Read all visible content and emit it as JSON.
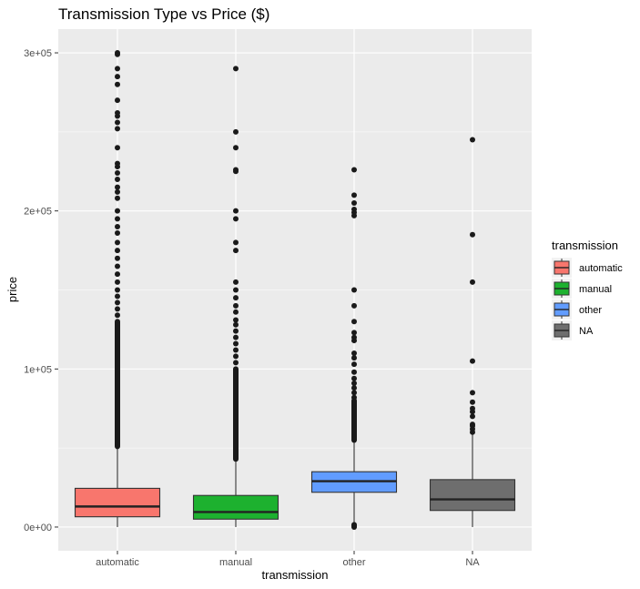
{
  "chart_data": {
    "type": "box",
    "title": "Transmission Type vs Price ($)",
    "xlabel": "transmission",
    "ylabel": "price",
    "ylim": [
      -15000,
      315000
    ],
    "y_ticks": [
      0,
      100000,
      200000,
      300000
    ],
    "y_tick_labels": [
      "0e+00",
      "1e+05",
      "2e+05",
      "3e+05"
    ],
    "categories": [
      "automatic",
      "manual",
      "other",
      "NA"
    ],
    "grid": true,
    "legend": {
      "title": "transmission",
      "position": "right",
      "entries": [
        "automatic",
        "manual",
        "other",
        "NA"
      ]
    },
    "colors": {
      "automatic": "#F8766D",
      "manual": "#1DB12F",
      "other": "#619CFF",
      "NA": "#6E6E6E",
      "panel": "#EBEBEB",
      "grid": "#FFFFFF",
      "point": "#1A1A1A"
    },
    "boxes": [
      {
        "category": "automatic",
        "min": 0,
        "q1": 6500,
        "median": 13000,
        "q3": 24500,
        "whisker_high": 51000,
        "outliers_dense_range": [
          51000,
          130000
        ],
        "outliers": [
          134000,
          138000,
          142000,
          146000,
          150000,
          155000,
          160000,
          165000,
          170000,
          175000,
          180000,
          186000,
          190000,
          195000,
          200000,
          208000,
          212000,
          215000,
          220000,
          224000,
          228000,
          230000,
          240000,
          252000,
          256000,
          260000,
          262000,
          270000,
          280000,
          285000,
          290000,
          299000,
          300000
        ]
      },
      {
        "category": "manual",
        "min": 0,
        "q1": 5000,
        "median": 9500,
        "q3": 20000,
        "whisker_high": 43000,
        "outliers_dense_range": [
          43000,
          100000
        ],
        "outliers": [
          104000,
          108000,
          112000,
          116000,
          120000,
          124000,
          128000,
          131000,
          136000,
          140000,
          145000,
          150000,
          155000,
          175000,
          180000,
          195000,
          200000,
          225000,
          226000,
          240000,
          250000,
          290000
        ]
      },
      {
        "category": "other",
        "min": 0,
        "q1": 22000,
        "median": 29000,
        "q3": 35000,
        "whisker_high": 55000,
        "outliers_dense_range": [
          55000,
          80000
        ],
        "outliers": [
          0,
          500,
          1000,
          1500,
          82000,
          85000,
          88000,
          91000,
          94000,
          98000,
          103000,
          107000,
          110000,
          118000,
          120000,
          123000,
          130000,
          140000,
          150000,
          197000,
          199000,
          201000,
          205000,
          210000,
          226000
        ]
      },
      {
        "category": "NA",
        "min": 0,
        "q1": 10500,
        "median": 17500,
        "q3": 30000,
        "whisker_high": 59000,
        "outliers_dense_range": [],
        "outliers": [
          60000,
          62000,
          64000,
          65000,
          70000,
          73000,
          75000,
          79000,
          85000,
          105000,
          155000,
          185000,
          245000
        ]
      }
    ]
  }
}
